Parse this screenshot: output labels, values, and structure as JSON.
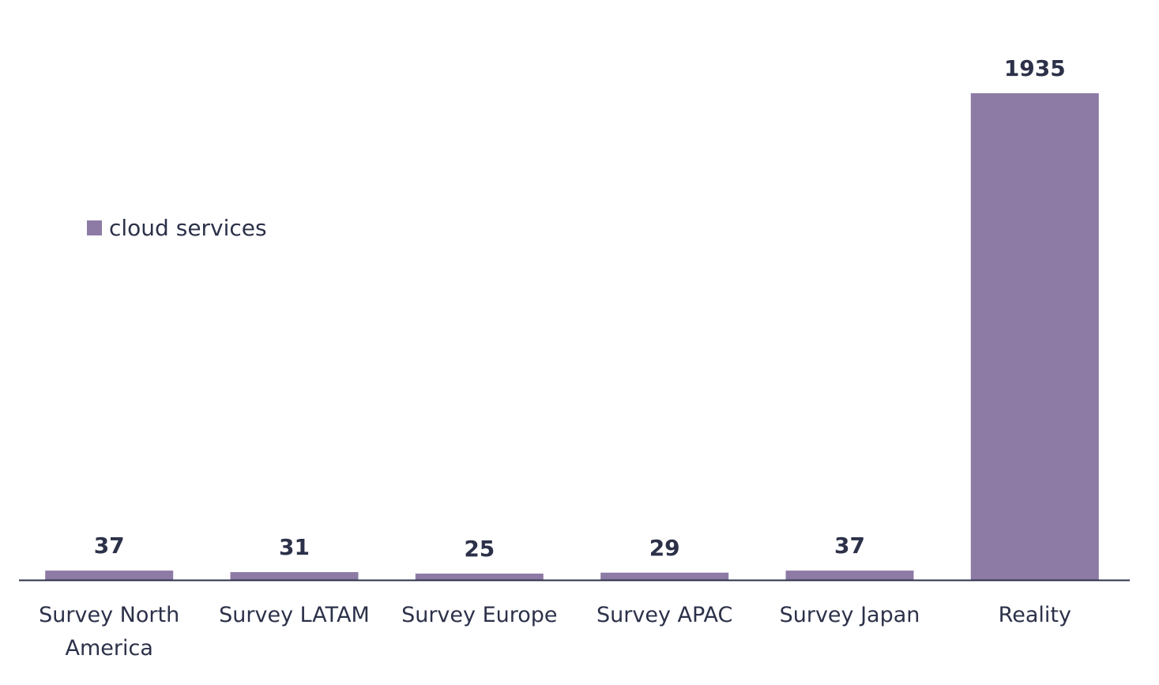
{
  "chart_data": {
    "type": "bar",
    "categories": [
      [
        "Survey North",
        "America"
      ],
      [
        "Survey LATAM"
      ],
      [
        "Survey Europe"
      ],
      [
        "Survey APAC"
      ],
      [
        "Survey Japan"
      ],
      [
        "Reality"
      ]
    ],
    "series": [
      {
        "name": "cloud services",
        "values": [
          37,
          31,
          25,
          29,
          37,
          1935
        ],
        "color": "#8d7ba5"
      }
    ],
    "value_labels": [
      "37",
      "31",
      "25",
      "29",
      "37",
      "1935"
    ],
    "ylim": [
      0,
      1935
    ],
    "grid": false,
    "legend_position": "middle-left",
    "colors": {
      "axis": "#2c3149",
      "label_text": "#2c3149",
      "value_text": "#2c3149"
    }
  },
  "legend": {
    "label": "cloud services"
  }
}
